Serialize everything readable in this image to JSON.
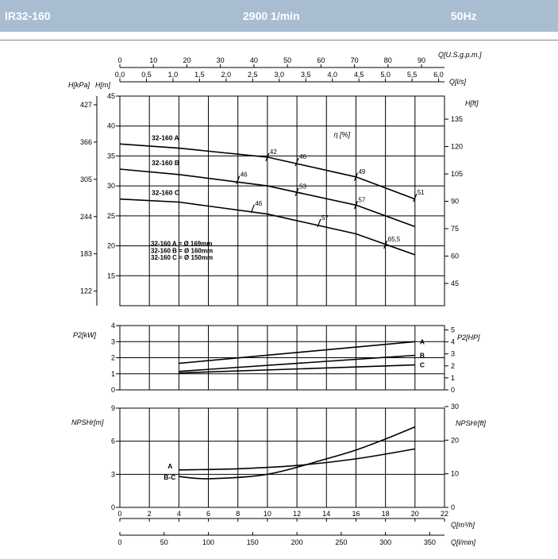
{
  "header": {
    "model": "IR32-160",
    "speed": "2900 1/min",
    "frequency": "50Hz",
    "band_color": "#a8bdd0"
  },
  "chart_data": [
    {
      "type": "line",
      "panel": "head",
      "x_axis_label": "Q[m³/h]",
      "xlim": [
        0,
        22
      ],
      "ylabel_left": "H[m]",
      "ylim": [
        10,
        45
      ],
      "y_ticks": [
        15,
        20,
        25,
        30,
        35,
        40,
        45
      ],
      "axis_kpa": {
        "label": "H[kPa]",
        "ticks": [
          122,
          183,
          244,
          305,
          366,
          427
        ]
      },
      "axis_ft": {
        "label": "H[ft]",
        "ticks": [
          45,
          60,
          75,
          90,
          105,
          120,
          135
        ]
      },
      "axis_usgpm": {
        "label": "Q[U.S.g.p.m.]",
        "ticks": [
          0,
          10,
          20,
          30,
          40,
          50,
          60,
          70,
          80,
          90
        ]
      },
      "axis_ls": {
        "label": "Q[l/s]",
        "ticks": [
          "0,0",
          "0,5",
          "1,0",
          "1,5",
          "2,0",
          "2,5",
          "3,0",
          "3,5",
          "4,0",
          "4,5",
          "5,0",
          "5,5",
          "6,0"
        ]
      },
      "efficiency_label": "η [%]",
      "series": [
        {
          "name": "32-160 A",
          "x": [
            0,
            4,
            10,
            16,
            20
          ],
          "y": [
            37,
            36.3,
            34.8,
            31.5,
            27.8
          ]
        },
        {
          "name": "32-160 B",
          "x": [
            0,
            4,
            10,
            16,
            20
          ],
          "y": [
            32.8,
            31.9,
            30.0,
            26.8,
            23.2
          ]
        },
        {
          "name": "32-160 C",
          "x": [
            0,
            4,
            10,
            16,
            20
          ],
          "y": [
            27.8,
            27.3,
            25.3,
            22.0,
            18.5
          ]
        }
      ],
      "efficiency_marks": [
        {
          "label": "42",
          "x": 10.0,
          "y": 34.8
        },
        {
          "label": "46",
          "x": 12.0,
          "y": 34.0
        },
        {
          "label": "49",
          "x": 16.0,
          "y": 31.5
        },
        {
          "label": "51",
          "x": 20.0,
          "y": 28.0
        },
        {
          "label": "46",
          "x": 8.0,
          "y": 31.0
        },
        {
          "label": "53",
          "x": 12.0,
          "y": 29.0
        },
        {
          "label": "57",
          "x": 16.0,
          "y": 26.8
        },
        {
          "label": "46",
          "x": 9.0,
          "y": 26.2
        },
        {
          "label": "57",
          "x": 13.5,
          "y": 23.8
        },
        {
          "label": "65,5",
          "x": 18.0,
          "y": 20.2
        }
      ],
      "annotations": [
        "32-160 A = Ø 169mm",
        "32-160 B = Ø 160mm",
        "32-160 C = Ø 150mm"
      ]
    },
    {
      "type": "line",
      "panel": "power",
      "ylabel_left": "P2[kW]",
      "ylim": [
        0,
        4
      ],
      "y_ticks": [
        0,
        1,
        2,
        3,
        4
      ],
      "axis_hp": {
        "label": "P2[HP]",
        "ticks": [
          0,
          1,
          2,
          3,
          4,
          5
        ]
      },
      "series": [
        {
          "name": "A",
          "x": [
            4,
            20
          ],
          "y": [
            1.65,
            3.0
          ]
        },
        {
          "name": "B",
          "x": [
            4,
            20
          ],
          "y": [
            1.15,
            2.15
          ]
        },
        {
          "name": "C",
          "x": [
            4,
            20
          ],
          "y": [
            1.05,
            1.55
          ]
        }
      ]
    },
    {
      "type": "line",
      "panel": "npsh",
      "ylabel_left": "NPSHr[m]",
      "ylim": [
        0,
        9
      ],
      "y_ticks": [
        0,
        3,
        6,
        9
      ],
      "axis_ft": {
        "label": "NPSHr[ft]",
        "ticks": [
          0,
          10,
          20,
          30
        ]
      },
      "series": [
        {
          "name": "A",
          "x": [
            4,
            8,
            12,
            16,
            20
          ],
          "y": [
            3.4,
            3.5,
            3.8,
            4.4,
            5.3
          ]
        },
        {
          "name": "B-C",
          "x": [
            4,
            6,
            10,
            14,
            16,
            18,
            20
          ],
          "y": [
            2.8,
            2.6,
            3.0,
            4.4,
            5.2,
            6.2,
            7.3
          ]
        }
      ],
      "x_axis_m3h": {
        "label": "Q[m³/h]",
        "ticks": [
          0,
          2,
          4,
          6,
          8,
          10,
          12,
          14,
          16,
          18,
          20,
          22
        ]
      },
      "x_axis_lmin": {
        "label": "Q[l/min]",
        "ticks": [
          0,
          50,
          100,
          150,
          200,
          250,
          300,
          350
        ]
      }
    }
  ]
}
